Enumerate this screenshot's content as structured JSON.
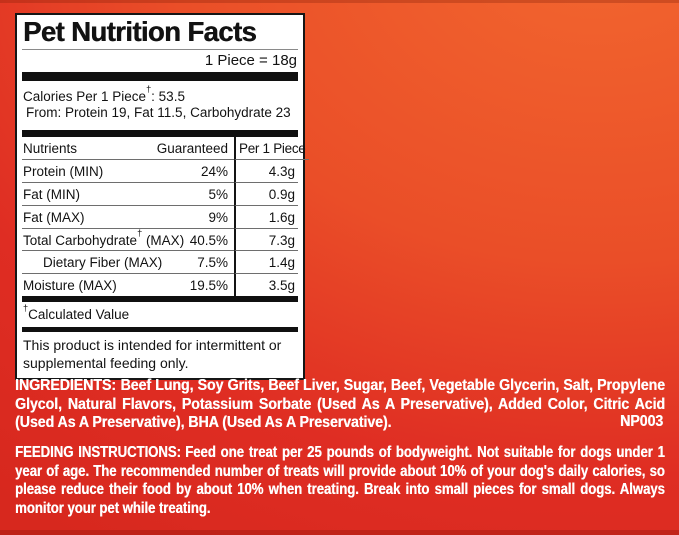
{
  "colors": {
    "bg_top": "#F2672F",
    "bg_bottom": "#D7281E",
    "panel_bg": "#FFFFFF",
    "ink": "#121212",
    "text_on_red": "#FFFFFF"
  },
  "panel": {
    "title": "Pet Nutrition Facts",
    "serving": "1 Piece = 18g",
    "calories": {
      "line1_pre": "Calories Per 1 Piece",
      "dagger": "†",
      "line1_post": ": 53.5",
      "line2": "From: Protein 19, Fat 11.5, Carbohydrate 23"
    },
    "table": {
      "headers": {
        "nutrients": "Nutrients",
        "guaranteed": "Guaranteed",
        "per_piece": "Per 1 Piece"
      },
      "rows": [
        {
          "name": "Protein (MIN)",
          "dagger": "",
          "suffix": "",
          "guaranteed": "24%",
          "per_piece": "4.3g",
          "indent": false
        },
        {
          "name": "Fat (MIN)",
          "dagger": "",
          "suffix": "",
          "guaranteed": "5%",
          "per_piece": "0.9g",
          "indent": false
        },
        {
          "name": "Fat (MAX)",
          "dagger": "",
          "suffix": "",
          "guaranteed": "9%",
          "per_piece": "1.6g",
          "indent": false
        },
        {
          "name": "Total Carbohydrate",
          "dagger": "†",
          "suffix": " (MAX)",
          "guaranteed": "40.5%",
          "per_piece": "7.3g",
          "indent": false
        },
        {
          "name": "Dietary Fiber (MAX)",
          "dagger": "",
          "suffix": "",
          "guaranteed": "7.5%",
          "per_piece": "1.4g",
          "indent": true
        },
        {
          "name": "Moisture (MAX)",
          "dagger": "",
          "suffix": "",
          "guaranteed": "19.5%",
          "per_piece": "3.5g",
          "indent": false
        }
      ]
    },
    "footnote": {
      "dagger": "†",
      "text": "Calculated Value"
    },
    "statement": "This product is intended for intermittent or supplemental feeding only."
  },
  "ingredients": {
    "heading": "INGREDIENTS:",
    "text": "Beef Lung, Soy Grits, Beef Liver, Sugar, Beef, Vegetable Glycerin, Salt, Propylene Glycol, Natural Flavors, Potassium Sorbate (Used As A Preservative), Added Color, Citric Acid (Used As A Preservative), BHA (Used As A Preservative).",
    "code": "NP003"
  },
  "feeding": {
    "heading": "FEEDING INSTRUCTIONS:",
    "text": "Feed one treat per 25 pounds of bodyweight. Not suitable for dogs under 1 year of age. The recommended number of treats will provide about 10% of your dog's daily calories, so please reduce their food by about 10% when treating. Break into small pieces for small dogs. Always monitor your pet while treating."
  }
}
